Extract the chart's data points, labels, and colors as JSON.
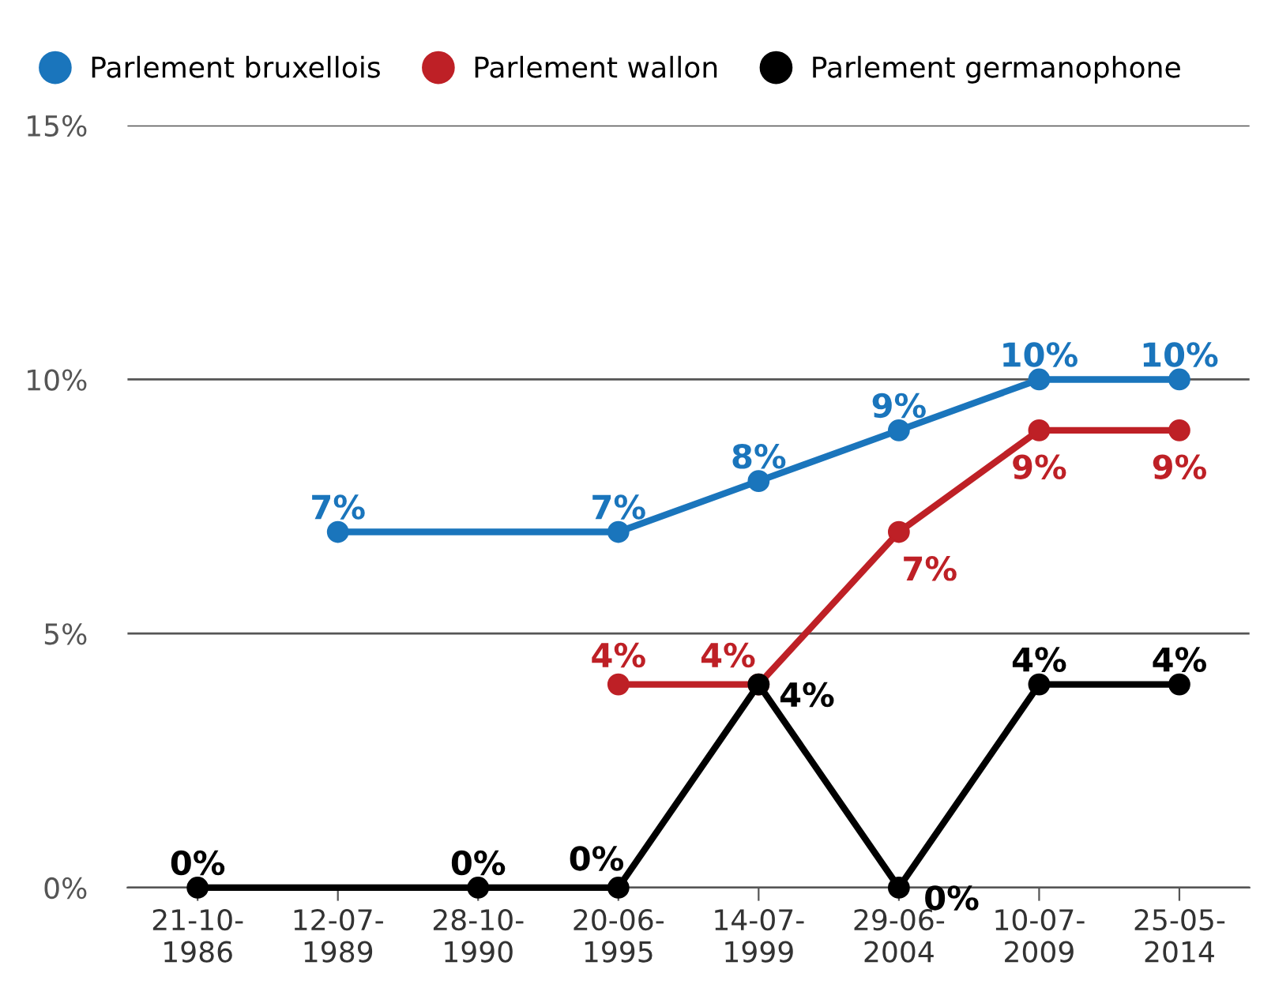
{
  "chart_data": {
    "type": "line",
    "categories": [
      "21-10-\n1986",
      "12-07-\n1989",
      "28-10-\n1990",
      "20-06-\n1995",
      "14-07-\n1999",
      "29-06-\n2004",
      "10-07-\n2009",
      "25-05-\n2014"
    ],
    "series": [
      {
        "name": "Parlement bruxellois",
        "color": "#1a75bc",
        "values": [
          null,
          7,
          null,
          7,
          8,
          9,
          10,
          10
        ],
        "value_labels": [
          null,
          "7%",
          null,
          "7%",
          "8%",
          "9%",
          "10%",
          "10%"
        ]
      },
      {
        "name": "Parlement wallon",
        "color": "#be2026",
        "values": [
          null,
          null,
          null,
          4,
          4,
          7,
          9,
          9
        ],
        "value_labels": [
          null,
          null,
          null,
          "4%",
          "4%",
          "7%",
          "9%",
          "9%"
        ]
      },
      {
        "name": "Parlement germanophone",
        "color": "#000000",
        "values": [
          0,
          null,
          0,
          0,
          4,
          0,
          4,
          4
        ],
        "value_labels": [
          "0%",
          null,
          "0%",
          "0%",
          "4%",
          "0%",
          "4%",
          "4%"
        ]
      }
    ],
    "ylim": [
      0,
      15
    ],
    "yticks": [
      {
        "value": 0,
        "label": "0%"
      },
      {
        "value": 5,
        "label": "5%"
      },
      {
        "value": 10,
        "label": "10%"
      },
      {
        "value": 15,
        "label": "15%"
      }
    ],
    "grid": "y",
    "legend": "top left",
    "marker": "circle",
    "line_style": "solid"
  }
}
